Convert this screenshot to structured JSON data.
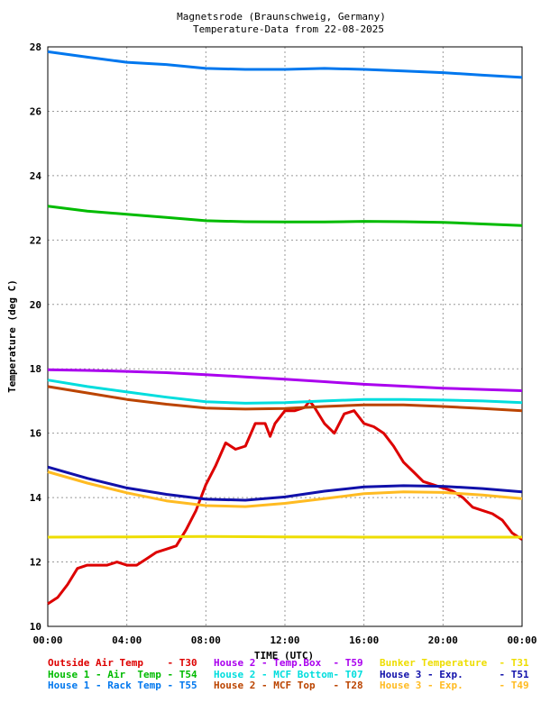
{
  "chart_data": {
    "type": "line",
    "title": "Magnetsrode (Braunschweig, Germany)",
    "subtitle": "Temperature-Data from 22-08-2025",
    "xlabel": "TIME (UTC)",
    "ylabel": "Temperature (deg C)",
    "xlim": [
      0,
      24
    ],
    "ylim": [
      10,
      28
    ],
    "grid": true,
    "x_ticks": [
      {
        "v": 0,
        "label": "00:00"
      },
      {
        "v": 4,
        "label": "04:00"
      },
      {
        "v": 8,
        "label": "08:00"
      },
      {
        "v": 12,
        "label": "12:00"
      },
      {
        "v": 16,
        "label": "16:00"
      },
      {
        "v": 20,
        "label": "20:00"
      },
      {
        "v": 24,
        "label": "00:00"
      }
    ],
    "y_ticks": [
      10,
      12,
      14,
      16,
      18,
      20,
      22,
      24,
      26,
      28
    ],
    "legend_position": "bottom",
    "series": [
      {
        "name": "Outside Air Temp",
        "sensor": "T30",
        "color": "#dd0000",
        "x": [
          0,
          0.5,
          1,
          1.5,
          2,
          2.5,
          3,
          3.5,
          4,
          4.5,
          5,
          5.5,
          6,
          6.5,
          7,
          7.5,
          8,
          8.5,
          9,
          9.5,
          10,
          10.5,
          11,
          11.25,
          11.5,
          12,
          12.5,
          13,
          13.25,
          13.5,
          14,
          14.5,
          15,
          15.5,
          16,
          16.5,
          17,
          17.5,
          18,
          18.5,
          19,
          19.5,
          20,
          20.5,
          21,
          21.5,
          22,
          22.5,
          23,
          23.5,
          24
        ],
        "y": [
          10.7,
          10.9,
          11.3,
          11.8,
          11.9,
          11.9,
          11.9,
          12.0,
          11.9,
          11.9,
          12.1,
          12.3,
          12.4,
          12.5,
          13.0,
          13.6,
          14.4,
          15.0,
          15.7,
          15.5,
          15.6,
          16.3,
          16.3,
          15.9,
          16.3,
          16.7,
          16.7,
          16.8,
          17.0,
          16.8,
          16.3,
          16.0,
          16.6,
          16.7,
          16.3,
          16.2,
          16.0,
          15.6,
          15.1,
          14.8,
          14.5,
          14.4,
          14.3,
          14.2,
          14.0,
          13.7,
          13.6,
          13.5,
          13.3,
          12.9,
          12.7
        ]
      },
      {
        "name": "House 1 - Air  Temp",
        "sensor": "T54",
        "color": "#00bb00",
        "x": [
          0,
          2,
          4,
          6,
          8,
          10,
          12,
          14,
          16,
          18,
          20,
          22,
          24
        ],
        "y": [
          23.05,
          22.9,
          22.8,
          22.7,
          22.6,
          22.57,
          22.56,
          22.56,
          22.58,
          22.57,
          22.55,
          22.5,
          22.45
        ]
      },
      {
        "name": "House 1 - Rack Temp",
        "sensor": "T55",
        "color": "#0077ee",
        "x": [
          0,
          2,
          4,
          6,
          8,
          10,
          12,
          14,
          16,
          18,
          20,
          22,
          24
        ],
        "y": [
          27.85,
          27.68,
          27.52,
          27.45,
          27.33,
          27.3,
          27.3,
          27.33,
          27.3,
          27.25,
          27.2,
          27.12,
          27.05
        ]
      },
      {
        "name": "House 2 - Temp.Box",
        "sensor": "T59",
        "color": "#aa00ee",
        "x": [
          0,
          2,
          4,
          6,
          8,
          10,
          12,
          14,
          16,
          18,
          20,
          22,
          24
        ],
        "y": [
          17.97,
          17.95,
          17.92,
          17.88,
          17.82,
          17.75,
          17.68,
          17.6,
          17.52,
          17.46,
          17.4,
          17.36,
          17.32
        ]
      },
      {
        "name": "House 2 - MCF Bottom",
        "sensor": "T07",
        "color": "#00dddd",
        "x": [
          0,
          2,
          4,
          6,
          8,
          10,
          12,
          14,
          16,
          18,
          20,
          22,
          24
        ],
        "y": [
          17.65,
          17.45,
          17.28,
          17.12,
          16.98,
          16.93,
          16.95,
          17.0,
          17.05,
          17.05,
          17.03,
          17.0,
          16.95
        ]
      },
      {
        "name": "House 2 - MCF Top",
        "sensor": "T28",
        "color": "#bb4400",
        "x": [
          0,
          2,
          4,
          6,
          8,
          10,
          12,
          14,
          16,
          18,
          20,
          22,
          24
        ],
        "y": [
          17.45,
          17.25,
          17.05,
          16.9,
          16.78,
          16.75,
          16.77,
          16.83,
          16.88,
          16.88,
          16.83,
          16.77,
          16.7
        ]
      },
      {
        "name": "Bunker Temperature",
        "sensor": "T31",
        "color": "#eedd00",
        "x": [
          0,
          4,
          8,
          12,
          16,
          20,
          24
        ],
        "y": [
          12.77,
          12.78,
          12.79,
          12.78,
          12.77,
          12.77,
          12.77
        ]
      },
      {
        "name": "House 3 - Exp.",
        "sensor": "T51",
        "color": "#1111aa",
        "x": [
          0,
          2,
          4,
          6,
          8,
          10,
          12,
          14,
          16,
          18,
          20,
          22,
          24
        ],
        "y": [
          14.95,
          14.6,
          14.3,
          14.1,
          13.95,
          13.92,
          14.02,
          14.2,
          14.33,
          14.37,
          14.35,
          14.28,
          14.18
        ]
      },
      {
        "name": "House 3 - Exp.",
        "sensor": "T49",
        "color": "#ffbb22",
        "x": [
          0,
          2,
          4,
          6,
          8,
          10,
          12,
          14,
          16,
          18,
          20,
          22,
          24
        ],
        "y": [
          14.8,
          14.45,
          14.15,
          13.9,
          13.75,
          13.72,
          13.82,
          13.97,
          14.12,
          14.18,
          14.16,
          14.08,
          13.97
        ]
      }
    ],
    "legend_rows": [
      [
        {
          "label": "Outside Air Temp    - T30",
          "color": "#dd0000"
        },
        {
          "label": "House 2 - Temp.Box  - T59",
          "color": "#aa00ee"
        },
        {
          "label": "Bunker Temperature  - T31",
          "color": "#eedd00"
        }
      ],
      [
        {
          "label": "House 1 - Air  Temp - T54",
          "color": "#00bb00"
        },
        {
          "label": "House 2 - MCF Bottom- T07",
          "color": "#00dddd"
        },
        {
          "label": "House 3 - Exp.      - T51",
          "color": "#1111aa"
        }
      ],
      [
        {
          "label": "House 1 - Rack Temp - T55",
          "color": "#0077ee"
        },
        {
          "label": "House 2 - MCF Top   - T28",
          "color": "#bb4400"
        },
        {
          "label": "House 3 - Exp.      - T49",
          "color": "#ffbb22"
        }
      ]
    ]
  }
}
